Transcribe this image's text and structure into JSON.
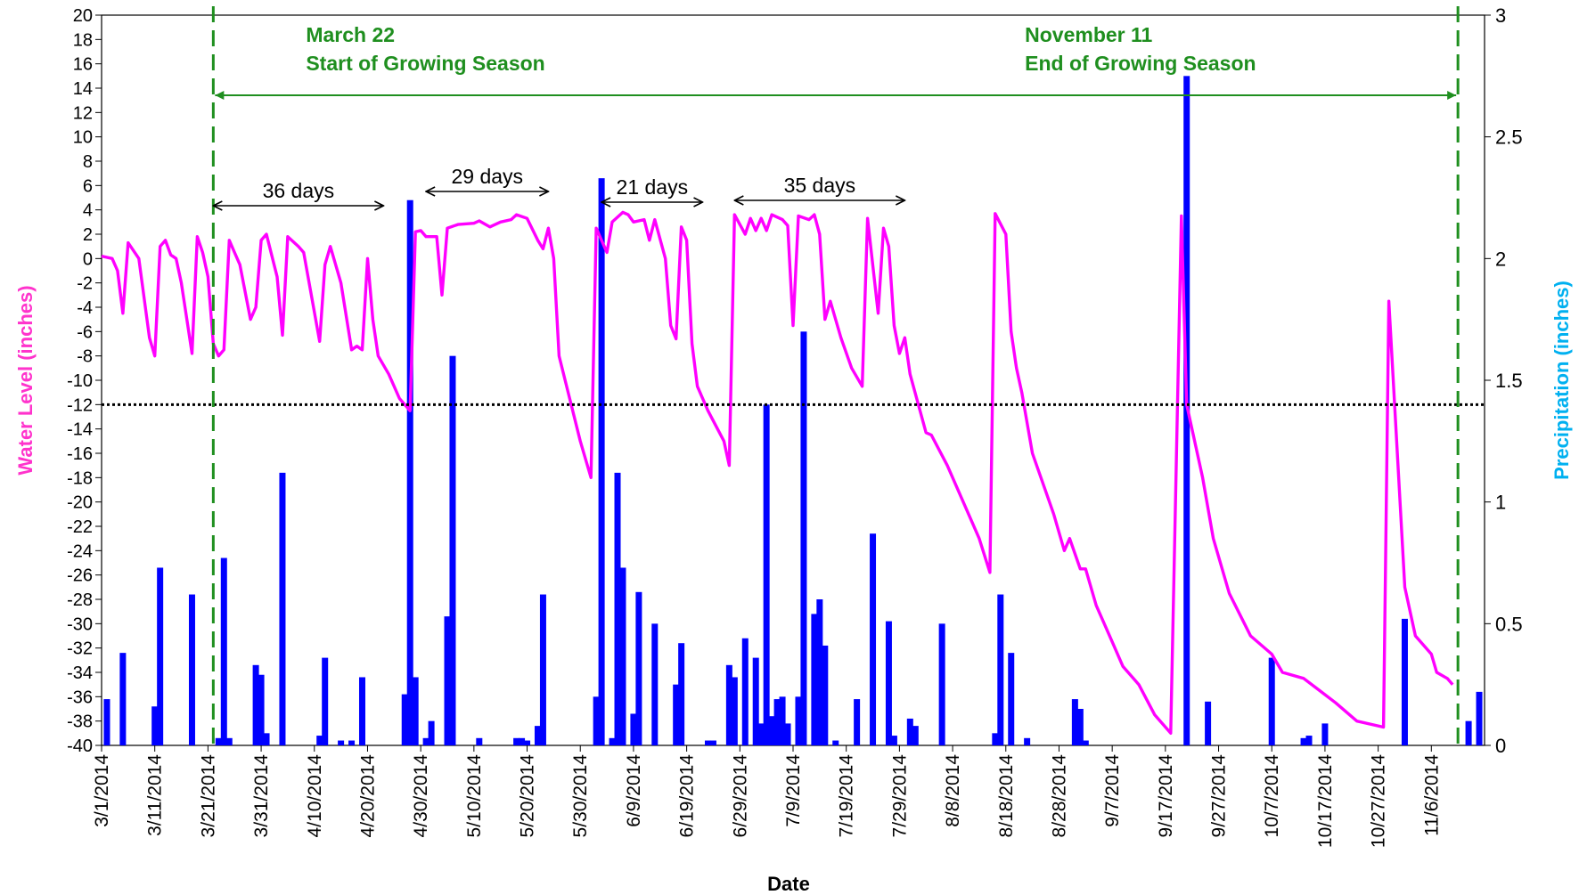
{
  "chart_data": {
    "type": "line-bar",
    "xlabel": "Date",
    "ylabel": "Water Level (inches)",
    "y2label": "Precipitation (inches)",
    "ylabel_color": "#ff33cc",
    "y2label_color": "#00b0f0",
    "xlim": [
      "2014-03-01",
      "2014-11-16"
    ],
    "xticks": [
      {
        "value": "2014-03-01",
        "label": "3/1/2014"
      },
      {
        "value": "2014-03-11",
        "label": "3/11/2014"
      },
      {
        "value": "2014-03-21",
        "label": "3/21/2014"
      },
      {
        "value": "2014-03-31",
        "label": "3/31/2014"
      },
      {
        "value": "2014-04-10",
        "label": "4/10/2014"
      },
      {
        "value": "2014-04-20",
        "label": "4/20/2014"
      },
      {
        "value": "2014-04-30",
        "label": "4/30/2014"
      },
      {
        "value": "2014-05-10",
        "label": "5/10/2014"
      },
      {
        "value": "2014-05-20",
        "label": "5/20/2014"
      },
      {
        "value": "2014-05-30",
        "label": "5/30/2014"
      },
      {
        "value": "2014-06-09",
        "label": "6/9/2014"
      },
      {
        "value": "2014-06-19",
        "label": "6/19/2014"
      },
      {
        "value": "2014-06-29",
        "label": "6/29/2014"
      },
      {
        "value": "2014-07-09",
        "label": "7/9/2014"
      },
      {
        "value": "2014-07-19",
        "label": "7/19/2014"
      },
      {
        "value": "2014-07-29",
        "label": "7/29/2014"
      },
      {
        "value": "2014-08-08",
        "label": "8/8/2014"
      },
      {
        "value": "2014-08-18",
        "label": "8/18/2014"
      },
      {
        "value": "2014-08-28",
        "label": "8/28/2014"
      },
      {
        "value": "2014-09-07",
        "label": "9/7/2014"
      },
      {
        "value": "2014-09-17",
        "label": "9/17/2014"
      },
      {
        "value": "2014-09-27",
        "label": "9/27/2014"
      },
      {
        "value": "2014-10-07",
        "label": "10/7/2014"
      },
      {
        "value": "2014-10-17",
        "label": "10/17/2014"
      },
      {
        "value": "2014-10-27",
        "label": "10/27/2014"
      },
      {
        "value": "2014-11-06",
        "label": "11/6/2014"
      }
    ],
    "ylim": [
      -40,
      20
    ],
    "yticks": [
      -40,
      -38,
      -36,
      -34,
      -32,
      -30,
      -28,
      -26,
      -24,
      -22,
      -20,
      -18,
      -16,
      -14,
      -12,
      -10,
      -8,
      -6,
      -4,
      -2,
      0,
      2,
      4,
      6,
      8,
      10,
      12,
      14,
      16,
      18,
      20
    ],
    "y2lim": [
      0,
      3
    ],
    "y2ticks": [
      0,
      0.5,
      1,
      1.5,
      2,
      2.5,
      3
    ],
    "series": [
      {
        "name": "Water Level",
        "type": "line",
        "color": "#ff00ff",
        "x": [
          "2014-03-01",
          "2014-03-03",
          "2014-03-04",
          "2014-03-05",
          "2014-03-06",
          "2014-03-08",
          "2014-03-10",
          "2014-03-11",
          "2014-03-12",
          "2014-03-13",
          "2014-03-14",
          "2014-03-15",
          "2014-03-16",
          "2014-03-18",
          "2014-03-19",
          "2014-03-20",
          "2014-03-21",
          "2014-03-22",
          "2014-03-23",
          "2014-03-24",
          "2014-03-25",
          "2014-03-26",
          "2014-03-27",
          "2014-03-29",
          "2014-03-30",
          "2014-03-31",
          "2014-04-01",
          "2014-04-03",
          "2014-04-04",
          "2014-04-05",
          "2014-04-07",
          "2014-04-08",
          "2014-04-11",
          "2014-04-12",
          "2014-04-13",
          "2014-04-15",
          "2014-04-17",
          "2014-04-18",
          "2014-04-19",
          "2014-04-20",
          "2014-04-21",
          "2014-04-22",
          "2014-04-24",
          "2014-04-25",
          "2014-04-26",
          "2014-04-28",
          "2014-04-29",
          "2014-04-30",
          "2014-05-01",
          "2014-05-03",
          "2014-05-04",
          "2014-05-05",
          "2014-05-07",
          "2014-05-10",
          "2014-05-11",
          "2014-05-13",
          "2014-05-15",
          "2014-05-17",
          "2014-05-18",
          "2014-05-20",
          "2014-05-22",
          "2014-05-23",
          "2014-05-24",
          "2014-05-25",
          "2014-05-26",
          "2014-05-28",
          "2014-05-30",
          "2014-06-01",
          "2014-06-02",
          "2014-06-04",
          "2014-06-05",
          "2014-06-07",
          "2014-06-08",
          "2014-06-09",
          "2014-06-11",
          "2014-06-12",
          "2014-06-13",
          "2014-06-15",
          "2014-06-16",
          "2014-06-17",
          "2014-06-18",
          "2014-06-19",
          "2014-06-20",
          "2014-06-21",
          "2014-06-23",
          "2014-06-26",
          "2014-06-27",
          "2014-06-28",
          "2014-06-30",
          "2014-07-01",
          "2014-07-02",
          "2014-07-03",
          "2014-07-04",
          "2014-07-05",
          "2014-07-07",
          "2014-07-08",
          "2014-07-09",
          "2014-07-10",
          "2014-07-12",
          "2014-07-13",
          "2014-07-14",
          "2014-07-15",
          "2014-07-16",
          "2014-07-18",
          "2014-07-20",
          "2014-07-22",
          "2014-07-23",
          "2014-07-25",
          "2014-07-26",
          "2014-07-27",
          "2014-07-28",
          "2014-07-29",
          "2014-07-30",
          "2014-07-31",
          "2014-08-03",
          "2014-08-04",
          "2014-08-07",
          "2014-08-10",
          "2014-08-13",
          "2014-08-15",
          "2014-08-16",
          "2014-08-18",
          "2014-08-19",
          "2014-08-20",
          "2014-08-21",
          "2014-08-23",
          "2014-08-27",
          "2014-08-29",
          "2014-08-30",
          "2014-09-01",
          "2014-09-02",
          "2014-09-04",
          "2014-09-07",
          "2014-09-09",
          "2014-09-12",
          "2014-09-15",
          "2014-09-18",
          "2014-09-20",
          "2014-09-21",
          "2014-09-24",
          "2014-09-26",
          "2014-09-29",
          "2014-10-03",
          "2014-10-07",
          "2014-10-09",
          "2014-10-13",
          "2014-10-16",
          "2014-10-19",
          "2014-10-23",
          "2014-10-28",
          "2014-10-29",
          "2014-11-01",
          "2014-11-03",
          "2014-11-06",
          "2014-11-07",
          "2014-11-09",
          "2014-11-10"
        ],
        "values": [
          0.2,
          0,
          -1,
          -4.5,
          1.3,
          0,
          -6.5,
          -8,
          1,
          1.5,
          0.3,
          0,
          -2,
          -7.8,
          1.8,
          0.5,
          -1.5,
          -7,
          -8,
          -7.5,
          1.5,
          0.5,
          -0.5,
          -5,
          -4,
          1.5,
          2,
          -1.5,
          -6.3,
          1.8,
          1,
          0.5,
          -6.8,
          -0.5,
          1,
          -2,
          -7.5,
          -7.2,
          -7.5,
          0,
          -5,
          -8,
          -9.5,
          -10.5,
          -11.5,
          -12.5,
          2.2,
          2.3,
          1.8,
          1.8,
          -3,
          2.5,
          2.8,
          2.9,
          3.1,
          2.6,
          3,
          3.2,
          3.6,
          3.3,
          1.5,
          0.8,
          2.5,
          0,
          -8,
          -11.5,
          -15,
          -18,
          2.5,
          0.5,
          3,
          3.8,
          3.6,
          3,
          3.2,
          1.5,
          3.2,
          0,
          -5.5,
          -6.6,
          2.6,
          1.5,
          -7,
          -10.5,
          -12.5,
          -15,
          -17,
          3.6,
          2,
          3.3,
          2.3,
          3.3,
          2.3,
          3.6,
          3.2,
          2.7,
          -5.5,
          3.5,
          3.2,
          3.6,
          2,
          -5,
          -3.5,
          -6.5,
          -9,
          -10.5,
          3.3,
          -4.5,
          2.5,
          1,
          -5.5,
          -7.8,
          -6.5,
          -9.5,
          -14.3,
          -14.5,
          -17,
          -20,
          -23,
          -25.8,
          3.7,
          2,
          -6,
          -9,
          -11,
          -16,
          -21,
          -24,
          -23,
          -25.5,
          -25.5,
          -28.5,
          -31.5,
          -33.5,
          -35,
          -37.5,
          -39,
          3.5,
          -12,
          -18,
          -23,
          -27.5,
          -31,
          -32.5,
          -34,
          -34.5,
          -35.5,
          -36.5,
          -38,
          -38.5,
          -3.5,
          -27,
          -31,
          -32.5,
          -34,
          -34.5,
          -35
        ]
      },
      {
        "name": "Precipitation",
        "type": "bar",
        "axis": "y2",
        "color": "#0000ff",
        "x": [
          "2014-03-02",
          "2014-03-05",
          "2014-03-11",
          "2014-03-12",
          "2014-03-18",
          "2014-03-23",
          "2014-03-24",
          "2014-03-25",
          "2014-03-30",
          "2014-03-31",
          "2014-04-01",
          "2014-04-04",
          "2014-04-11",
          "2014-04-12",
          "2014-04-15",
          "2014-04-17",
          "2014-04-19",
          "2014-04-27",
          "2014-04-28",
          "2014-04-29",
          "2014-05-01",
          "2014-05-02",
          "2014-05-05",
          "2014-05-06",
          "2014-05-11",
          "2014-05-18",
          "2014-05-19",
          "2014-05-20",
          "2014-05-22",
          "2014-05-23",
          "2014-06-02",
          "2014-06-03",
          "2014-06-05",
          "2014-06-06",
          "2014-06-07",
          "2014-06-09",
          "2014-06-10",
          "2014-06-13",
          "2014-06-17",
          "2014-06-18",
          "2014-06-23",
          "2014-06-24",
          "2014-06-27",
          "2014-06-28",
          "2014-06-30",
          "2014-07-02",
          "2014-07-03",
          "2014-07-04",
          "2014-07-05",
          "2014-07-06",
          "2014-07-07",
          "2014-07-08",
          "2014-07-10",
          "2014-07-11",
          "2014-07-13",
          "2014-07-14",
          "2014-07-15",
          "2014-07-17",
          "2014-07-21",
          "2014-07-24",
          "2014-07-27",
          "2014-07-28",
          "2014-07-31",
          "2014-08-01",
          "2014-08-06",
          "2014-08-16",
          "2014-08-17",
          "2014-08-19",
          "2014-08-22",
          "2014-08-31",
          "2014-09-01",
          "2014-09-02",
          "2014-09-21",
          "2014-09-25",
          "2014-10-07",
          "2014-10-13",
          "2014-10-14",
          "2014-10-17",
          "2014-11-01",
          "2014-11-13",
          "2014-11-15"
        ],
        "values": [
          0.19,
          0.38,
          0.16,
          0.73,
          0.62,
          0.03,
          0.77,
          0.03,
          0.33,
          0.29,
          0.05,
          1.12,
          0.04,
          0.36,
          0.02,
          0.02,
          0.28,
          0.21,
          2.24,
          0.28,
          0.03,
          0.1,
          0.53,
          1.6,
          0.03,
          0.03,
          0.03,
          0.02,
          0.08,
          0.62,
          0.2,
          2.33,
          0.03,
          1.12,
          0.73,
          0.13,
          0.63,
          0.5,
          0.25,
          0.42,
          0.02,
          0.02,
          0.33,
          0.28,
          0.44,
          0.36,
          0.09,
          1.4,
          0.12,
          0.19,
          0.2,
          0.09,
          0.2,
          1.7,
          0.54,
          0.6,
          0.41,
          0.02,
          0.19,
          0.87,
          0.51,
          0.04,
          0.11,
          0.08,
          0.5,
          0.05,
          0.62,
          0.38,
          0.03,
          0.19,
          0.15,
          0.02,
          2.75,
          0.18,
          0.36,
          0.03,
          0.04,
          0.09,
          0.52,
          0.1,
          0.22
        ]
      }
    ],
    "reference_line": {
      "value": -12,
      "color": "#000000",
      "style": "dotted"
    },
    "annotations": [
      {
        "x": "2014-03-22",
        "lines": [
          "March 22",
          "Start of Growing Season"
        ],
        "color": "#1f8f1f"
      },
      {
        "x": "2014-11-11",
        "lines": [
          "November 11",
          "End of Growing Season"
        ],
        "color": "#1f8f1f"
      }
    ],
    "intervals": [
      {
        "start": "2014-03-22",
        "end": "2014-04-23",
        "label": "36 days"
      },
      {
        "start": "2014-05-01",
        "end": "2014-05-24",
        "label": "29 days"
      },
      {
        "start": "2014-06-03",
        "end": "2014-06-22",
        "label": "21 days"
      },
      {
        "start": "2014-06-28",
        "end": "2014-07-30",
        "label": "35 days"
      }
    ]
  }
}
